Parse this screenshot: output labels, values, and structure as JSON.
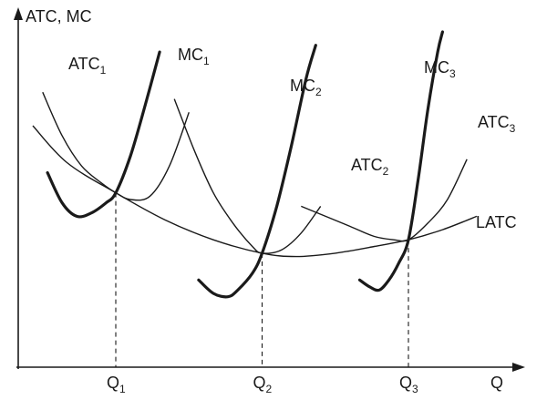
{
  "chart_data": {
    "type": "line",
    "title": "",
    "ylabel": "ATC, MC",
    "xlabel": "Q",
    "xlim": [
      0,
      10
    ],
    "ylim": [
      0,
      10
    ],
    "x_ticks": [
      {
        "x": 2.0,
        "base": "Q",
        "sub": "1"
      },
      {
        "x": 5.0,
        "base": "Q",
        "sub": "2"
      },
      {
        "x": 8.0,
        "base": "Q",
        "sub": "3"
      }
    ],
    "equilibria": [
      {
        "x": 2.0,
        "y": 5.2
      },
      {
        "x": 5.0,
        "y": 3.4
      },
      {
        "x": 8.0,
        "y": 3.8
      }
    ],
    "series": [
      {
        "name": "ATC",
        "sub": "1",
        "kind": "ATC",
        "x": [
          0.5,
          0.9,
          1.3,
          1.7,
          2.0,
          2.3,
          2.7,
          3.1,
          3.5
        ],
        "y": [
          8.2,
          6.9,
          6.0,
          5.5,
          5.2,
          5.0,
          5.1,
          6.0,
          7.6
        ]
      },
      {
        "name": "MC",
        "sub": "1",
        "kind": "MC",
        "x": [
          0.6,
          0.9,
          1.2,
          1.5,
          1.8,
          2.0,
          2.3,
          2.6,
          2.9
        ],
        "y": [
          5.8,
          4.9,
          4.5,
          4.6,
          4.9,
          5.2,
          6.3,
          7.8,
          9.4
        ]
      },
      {
        "name": "ATC",
        "sub": "2",
        "kind": "ATC",
        "x": [
          3.2,
          3.6,
          4.0,
          4.4,
          4.8,
          5.0,
          5.4,
          5.8,
          6.2
        ],
        "y": [
          8.0,
          6.5,
          5.2,
          4.3,
          3.6,
          3.4,
          3.5,
          4.0,
          4.8
        ]
      },
      {
        "name": "MC",
        "sub": "2",
        "kind": "MC",
        "x": [
          3.7,
          4.0,
          4.3,
          4.5,
          4.8,
          5.0,
          5.3,
          5.6,
          5.9,
          6.1
        ],
        "y": [
          2.6,
          2.2,
          2.1,
          2.3,
          2.8,
          3.4,
          4.8,
          6.6,
          8.6,
          9.6
        ]
      },
      {
        "name": "ATC",
        "sub": "3",
        "kind": "ATC",
        "x": [
          5.8,
          6.3,
          6.8,
          7.3,
          7.7,
          8.0,
          8.4,
          8.8,
          9.2
        ],
        "y": [
          4.8,
          4.5,
          4.2,
          3.9,
          3.8,
          3.8,
          4.3,
          5.0,
          6.2
        ]
      },
      {
        "name": "MC",
        "sub": "3",
        "kind": "MC",
        "x": [
          7.0,
          7.2,
          7.4,
          7.6,
          7.8,
          8.0,
          8.2,
          8.4,
          8.6,
          8.7
        ],
        "y": [
          2.6,
          2.4,
          2.3,
          2.6,
          3.1,
          3.8,
          5.6,
          7.7,
          9.4,
          10.0
        ]
      },
      {
        "name": "LATC",
        "sub": "",
        "kind": "LATC",
        "x": [
          0.3,
          1.0,
          2.0,
          3.0,
          4.0,
          5.0,
          5.7,
          6.5,
          7.3,
          8.0,
          8.7,
          9.4
        ],
        "y": [
          7.2,
          6.1,
          5.2,
          4.4,
          3.8,
          3.4,
          3.3,
          3.4,
          3.6,
          3.8,
          4.1,
          4.5
        ]
      }
    ]
  }
}
